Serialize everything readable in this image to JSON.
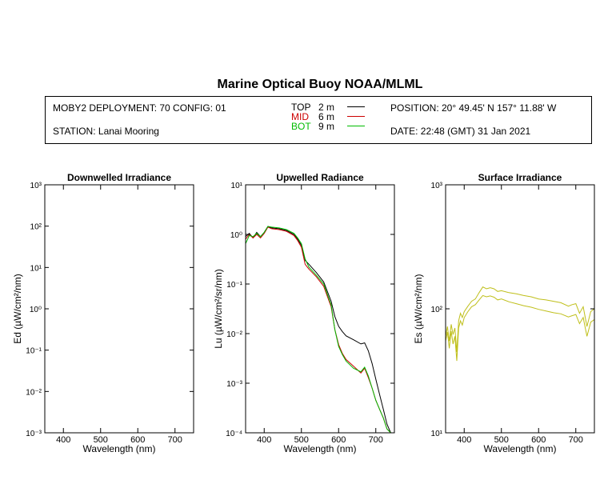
{
  "header": {
    "title": "Marine Optical Buoy NOAA/MLML",
    "deployment": "MOBY2 DEPLOYMENT: 70 CONFIG: 01",
    "station": "STATION: Lanai Mooring",
    "position": "POSITION: 20° 49.45' N   157° 11.88' W",
    "date": "DATE: 22:48 (GMT) 31 Jan 2021"
  },
  "legend": [
    {
      "label": "TOP",
      "depth": "2  m",
      "color": "#000000"
    },
    {
      "label": "MID",
      "depth": "6  m",
      "color": "#cc0000"
    },
    {
      "label": "BOT",
      "depth": "9  m",
      "color": "#00bb00"
    }
  ],
  "chart_data": [
    {
      "type": "line",
      "title": "Downwelled Irradiance",
      "xlabel": "Wavelength (nm)",
      "ylabel": "Ed  (µW/cm²/nm)",
      "xlim": [
        350,
        750
      ],
      "ylim": [
        0.001,
        1000
      ],
      "yscale": "log",
      "xticks": [
        "400",
        "500",
        "600",
        "700"
      ],
      "yticks": [
        "10⁻³",
        "10⁻²",
        "10⁻¹",
        "10⁰",
        "10¹",
        "10²",
        "10³"
      ],
      "series": []
    },
    {
      "type": "line",
      "title": "Upwelled Radiance",
      "xlabel": "Wavelength (nm)",
      "ylabel": "Lu  (µW/cm²/sr/nm)",
      "xlim": [
        350,
        750
      ],
      "ylim": [
        0.0001,
        10
      ],
      "yscale": "log",
      "xticks": [
        "400",
        "500",
        "600",
        "700"
      ],
      "yticks": [
        "10⁻⁴",
        "10⁻³",
        "10⁻²",
        "10⁻¹",
        "10⁰",
        "10¹"
      ],
      "series": [
        {
          "name": "TOP",
          "color": "#000000",
          "x": [
            350,
            360,
            370,
            380,
            390,
            400,
            410,
            420,
            440,
            460,
            480,
            490,
            500,
            510,
            520,
            540,
            560,
            580,
            590,
            600,
            610,
            620,
            640,
            660,
            670,
            680,
            690,
            700,
            710,
            720,
            730,
            740,
            750
          ],
          "y": [
            0.9,
            1.05,
            0.85,
            1.1,
            0.9,
            1.1,
            1.45,
            1.35,
            1.3,
            1.2,
            1.0,
            0.8,
            0.6,
            0.3,
            0.25,
            0.17,
            0.11,
            0.045,
            0.022,
            0.014,
            0.011,
            0.009,
            0.0075,
            0.0062,
            0.0065,
            0.0045,
            0.0025,
            0.0012,
            0.0006,
            0.0003,
            0.00015,
            0.0001,
            0.0001
          ]
        },
        {
          "name": "MID",
          "color": "#cc0000",
          "x": [
            350,
            360,
            370,
            380,
            390,
            400,
            410,
            420,
            440,
            460,
            480,
            490,
            500,
            510,
            520,
            540,
            560,
            580,
            590,
            600,
            610,
            620,
            640,
            660,
            670,
            680,
            690,
            700,
            710,
            720,
            730,
            740,
            750
          ],
          "y": [
            0.8,
            1.0,
            0.85,
            1.0,
            0.85,
            1.05,
            1.4,
            1.3,
            1.25,
            1.15,
            0.95,
            0.75,
            0.55,
            0.25,
            0.2,
            0.14,
            0.09,
            0.035,
            0.012,
            0.006,
            0.004,
            0.003,
            0.0022,
            0.0016,
            0.002,
            0.0013,
            0.0008,
            0.00045,
            0.0003,
            0.0002,
            0.00012,
            0.0001,
            0.0001
          ]
        },
        {
          "name": "BOT",
          "color": "#00bb00",
          "x": [
            350,
            360,
            370,
            380,
            390,
            400,
            410,
            420,
            440,
            460,
            480,
            490,
            500,
            510,
            520,
            540,
            560,
            580,
            590,
            600,
            610,
            620,
            640,
            660,
            670,
            680,
            690,
            700,
            710,
            720,
            730,
            740,
            750
          ],
          "y": [
            0.65,
            0.95,
            0.9,
            1.05,
            0.9,
            1.1,
            1.45,
            1.4,
            1.35,
            1.25,
            1.05,
            0.85,
            0.65,
            0.32,
            0.22,
            0.15,
            0.1,
            0.038,
            0.012,
            0.0055,
            0.0038,
            0.0028,
            0.002,
            0.0017,
            0.0021,
            0.0014,
            0.0008,
            0.00045,
            0.0003,
            0.0002,
            0.00012,
            0.0001,
            0.0001
          ]
        }
      ]
    },
    {
      "type": "line",
      "title": "Surface Irradiance",
      "xlabel": "Wavelength (nm)",
      "ylabel": "Es  (µW/cm²/nm)",
      "xlim": [
        350,
        750
      ],
      "ylim": [
        10,
        1000
      ],
      "yscale": "log",
      "xticks": [
        "400",
        "500",
        "600",
        "700"
      ],
      "yticks": [
        "10¹",
        "10²",
        "10³"
      ],
      "series": [
        {
          "name": "Es-1",
          "color": "#bfbf1a",
          "x": [
            350,
            355,
            360,
            365,
            370,
            375,
            380,
            385,
            390,
            395,
            400,
            410,
            420,
            430,
            440,
            450,
            460,
            470,
            480,
            490,
            500,
            520,
            540,
            560,
            580,
            600,
            620,
            640,
            660,
            680,
            690,
            700,
            710,
            720,
            730,
            740,
            750
          ],
          "y": [
            60,
            72,
            55,
            75,
            62,
            70,
            45,
            80,
            92,
            85,
            95,
            105,
            115,
            120,
            135,
            150,
            145,
            148,
            145,
            138,
            140,
            135,
            132,
            128,
            125,
            120,
            118,
            115,
            112,
            105,
            108,
            110,
            92,
            104,
            72,
            95,
            100
          ]
        },
        {
          "name": "Es-2",
          "color": "#bfbf1a",
          "x": [
            350,
            355,
            360,
            365,
            370,
            375,
            380,
            385,
            390,
            395,
            400,
            410,
            420,
            430,
            440,
            450,
            460,
            470,
            480,
            490,
            500,
            520,
            540,
            560,
            580,
            600,
            620,
            640,
            660,
            680,
            690,
            700,
            710,
            720,
            730,
            740,
            750
          ],
          "y": [
            55,
            65,
            48,
            66,
            52,
            60,
            38,
            70,
            80,
            74,
            85,
            95,
            104,
            108,
            118,
            128,
            125,
            127,
            124,
            118,
            120,
            114,
            110,
            106,
            103,
            99,
            96,
            93,
            91,
            86,
            88,
            90,
            76,
            85,
            60,
            78,
            82
          ]
        }
      ]
    }
  ]
}
